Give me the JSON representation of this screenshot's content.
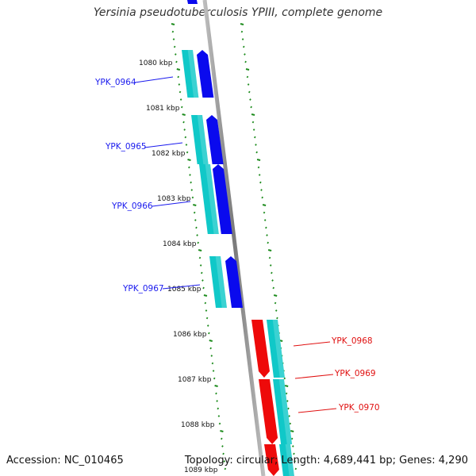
{
  "title": "Yersinia pseudotuberculosis YPIII, complete genome",
  "footer": {
    "accession": "Accession: NC_010465",
    "stats": "Topology: circular; Length: 4,689,441 bp; Genes: 4,290"
  },
  "scale_labels": [
    "1080 kbp",
    "1081 kbp",
    "1082 kbp",
    "1083 kbp",
    "1084 kbp",
    "1085 kbp",
    "1086 kbp",
    "1087 kbp",
    "1088 kbp",
    "1089 kbp"
  ],
  "genes": [
    {
      "name": "YPK_0964",
      "strand": "forward"
    },
    {
      "name": "YPK_0965",
      "strand": "forward"
    },
    {
      "name": "YPK_0966",
      "strand": "forward"
    },
    {
      "name": "YPK_0967",
      "strand": "forward"
    },
    {
      "name": "YPK_0968",
      "strand": "reverse"
    },
    {
      "name": "YPK_0969",
      "strand": "reverse"
    },
    {
      "name": "YPK_0970",
      "strand": "reverse"
    }
  ],
  "colors": {
    "forward_gene": "#0a0aee",
    "reverse_gene": "#ee0a0a",
    "cds": "#10c8c8",
    "backbone": "#8c8c8c",
    "tick": "#1e8c1e"
  }
}
